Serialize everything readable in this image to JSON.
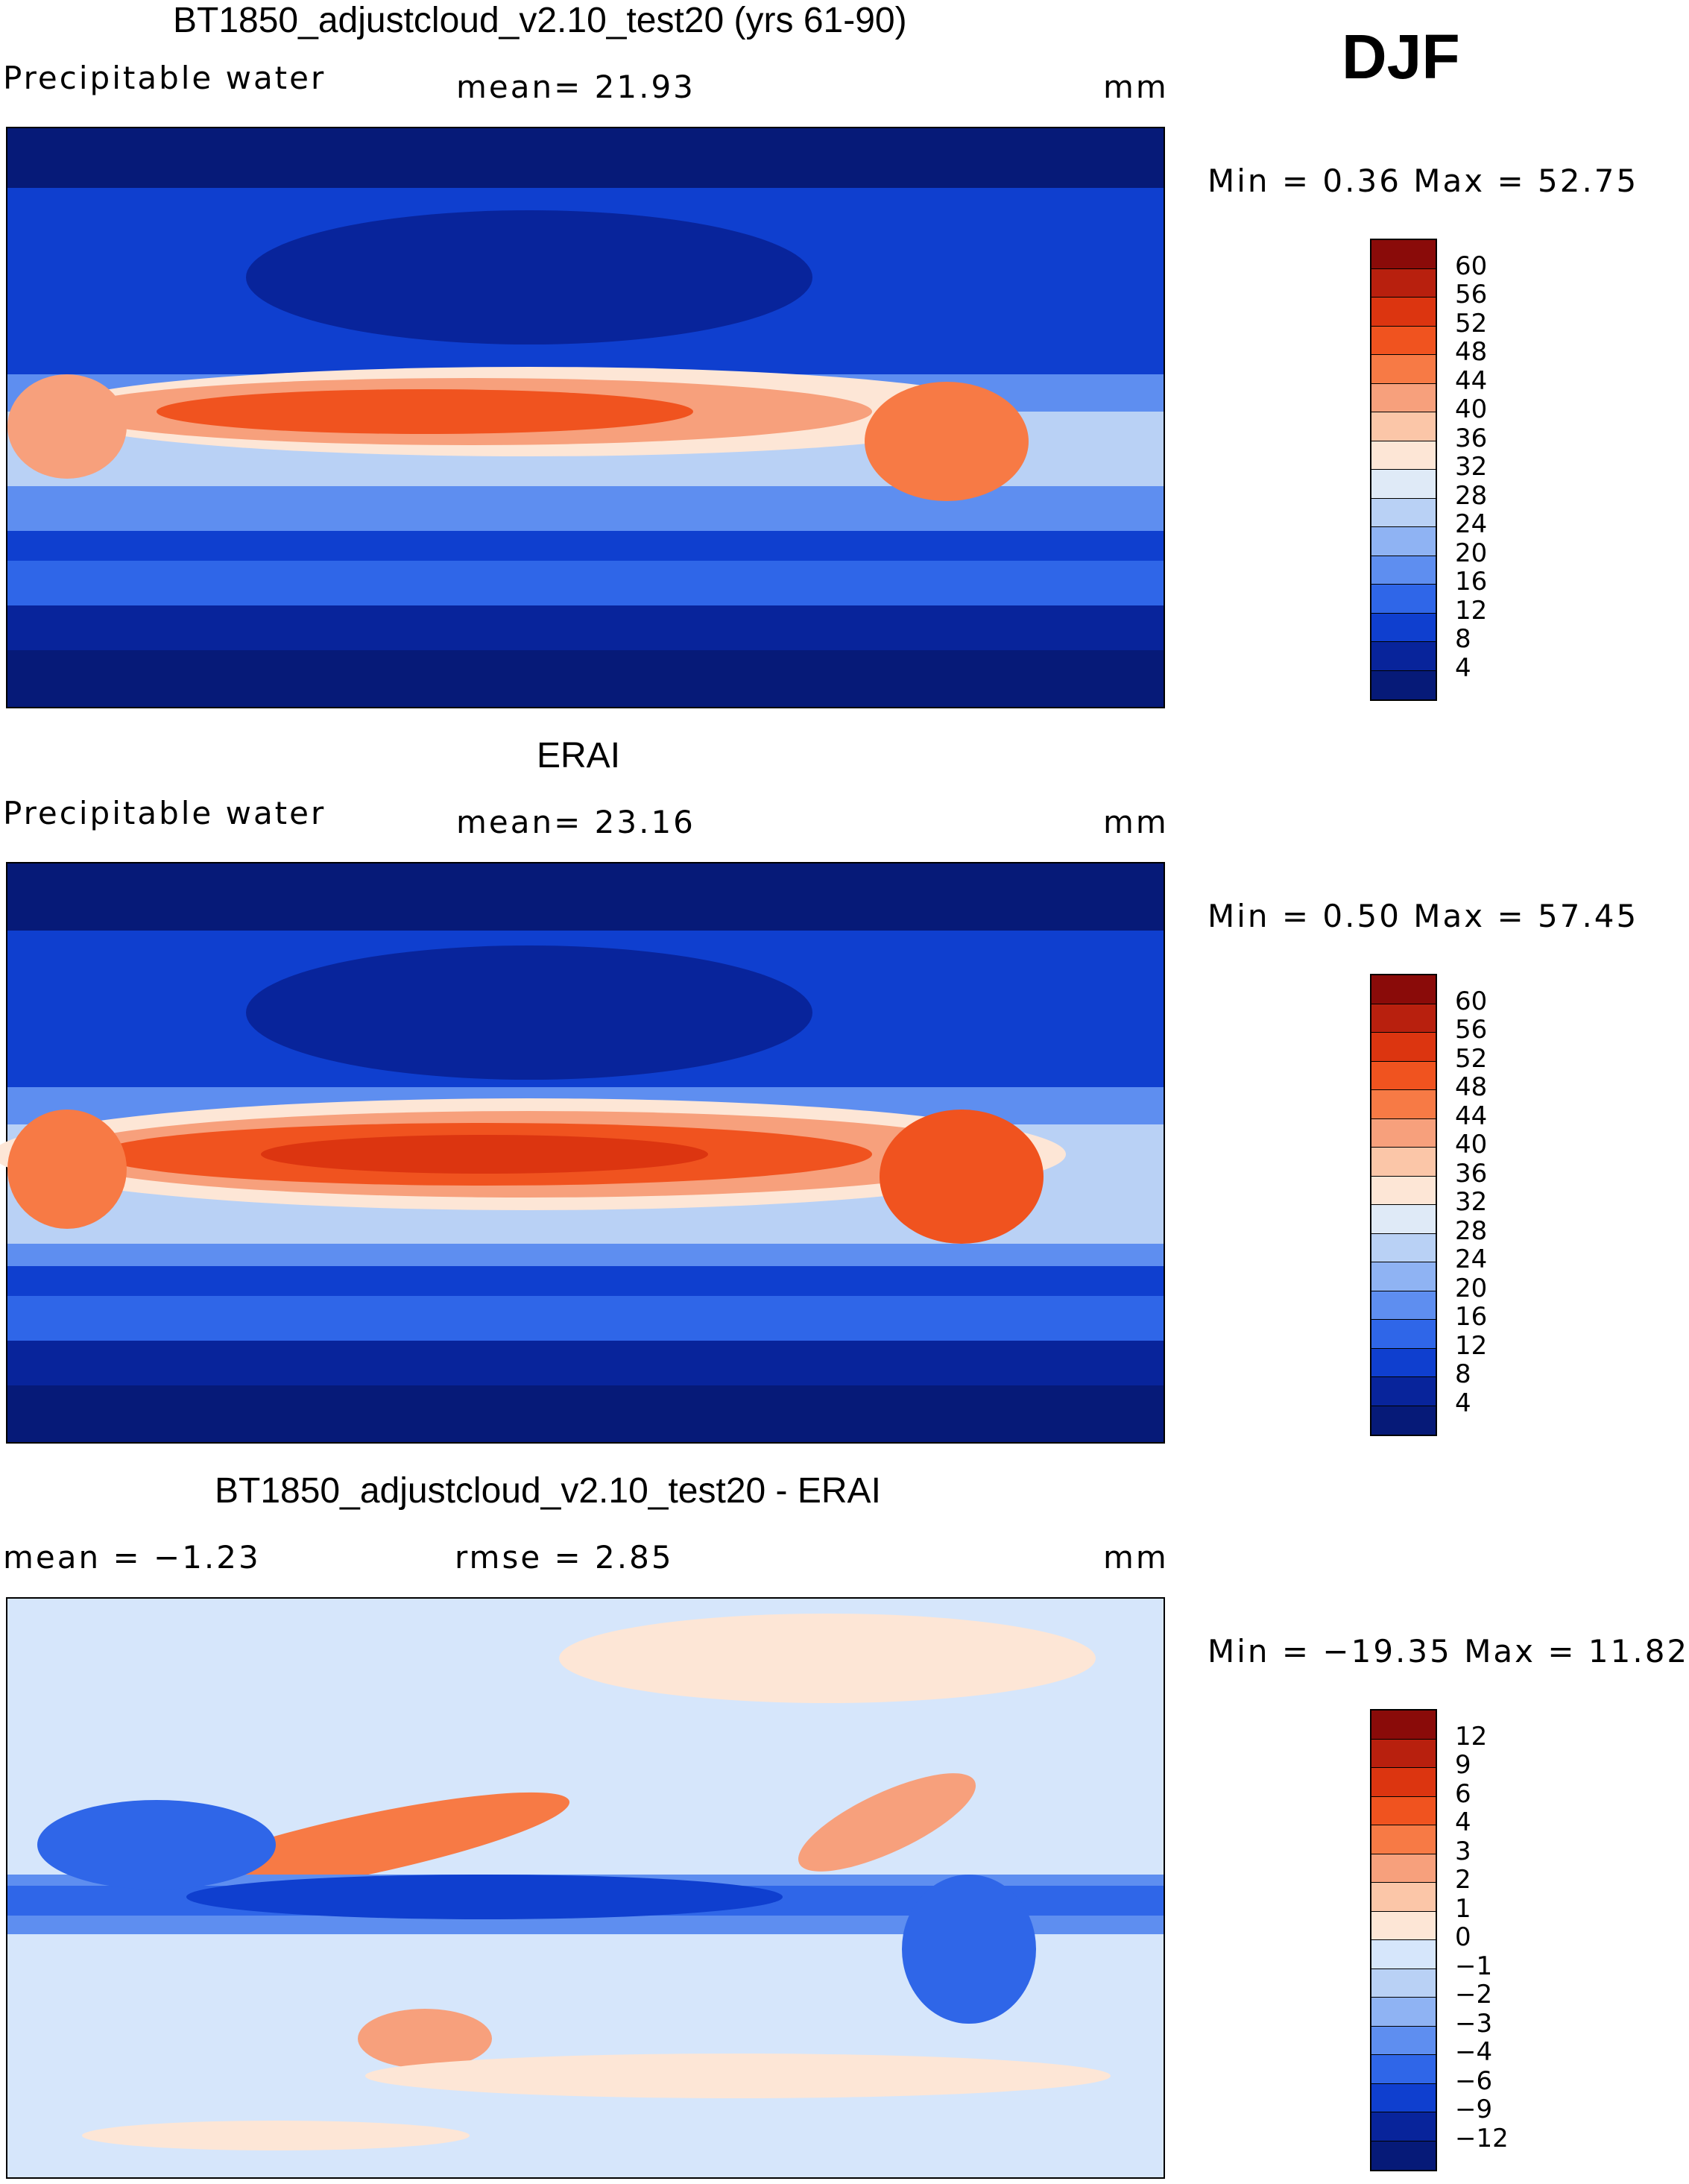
{
  "season": "DJF",
  "chart_data": [
    {
      "type": "heatmap",
      "title": "BT1850_adjustcloud_v2.10_test20 (yrs 61-90)",
      "left_label": "Precipitable water",
      "stat_text": "mean=   21.93",
      "units": "mm",
      "minmax_text": "Min =    0.36 Max =   52.75",
      "min": 0.36,
      "max": 52.75,
      "mean": 21.93,
      "levels": [
        "60",
        "56",
        "52",
        "48",
        "44",
        "40",
        "36",
        "32",
        "28",
        "24",
        "20",
        "16",
        "12",
        "8",
        "4"
      ],
      "colors": [
        "#8a0b09",
        "#b8200e",
        "#dc3510",
        "#f0531f",
        "#f77a45",
        "#f7a07c",
        "#fbc6a8",
        "#fde6d6",
        "#dfeaf7",
        "#b9d1f5",
        "#8fb3f3",
        "#5e8ef0",
        "#2f66e8",
        "#0f3fcf",
        "#08249b",
        "#061a78"
      ]
    },
    {
      "type": "heatmap",
      "title": "ERAI",
      "left_label": "Precipitable water",
      "stat_text": "mean=   23.16",
      "units": "mm",
      "minmax_text": "Min =    0.50 Max =   57.45",
      "min": 0.5,
      "max": 57.45,
      "mean": 23.16,
      "levels": [
        "60",
        "56",
        "52",
        "48",
        "44",
        "40",
        "36",
        "32",
        "28",
        "24",
        "20",
        "16",
        "12",
        "8",
        "4"
      ],
      "colors": [
        "#8a0b09",
        "#b8200e",
        "#dc3510",
        "#f0531f",
        "#f77a45",
        "#f7a07c",
        "#fbc6a8",
        "#fde6d6",
        "#dfeaf7",
        "#b9d1f5",
        "#8fb3f3",
        "#5e8ef0",
        "#2f66e8",
        "#0f3fcf",
        "#08249b",
        "#061a78"
      ]
    },
    {
      "type": "heatmap",
      "title": "BT1850_adjustcloud_v2.10_test20 - ERAI",
      "left_label": "mean =   −1.23",
      "stat_text": "rmse =    2.85",
      "units": "mm",
      "minmax_text": "Min = −19.35 Max =   11.82",
      "min": -19.35,
      "max": 11.82,
      "mean": -1.23,
      "rmse": 2.85,
      "levels": [
        "12",
        "9",
        "6",
        "4",
        "3",
        "2",
        "1",
        "0",
        "−1",
        "−2",
        "−3",
        "−4",
        "−6",
        "−9",
        "−12"
      ],
      "colors": [
        "#8a0b09",
        "#b8200e",
        "#dc3510",
        "#f0531f",
        "#f77a45",
        "#f7a07c",
        "#fbc6a8",
        "#fde6d6",
        "#d6e6fb",
        "#b9d1f5",
        "#8fb3f3",
        "#5e8ef0",
        "#2f66e8",
        "#0f3fcf",
        "#08249b",
        "#061a78"
      ]
    }
  ]
}
